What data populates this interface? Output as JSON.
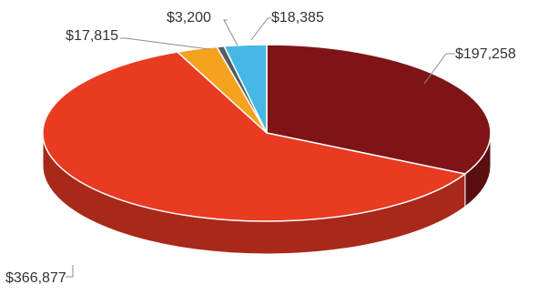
{
  "chart_data": {
    "type": "pie",
    "style": "3d",
    "title": "",
    "categories": [
      "",
      "",
      "",
      "",
      ""
    ],
    "values": [
      197258,
      366877,
      17815,
      3200,
      18385
    ],
    "labels": [
      "$197,258",
      "$366,877",
      "$17,815",
      "$3,200",
      "$18,385"
    ],
    "colors": [
      "#7e1416",
      "#e93a22",
      "#f5a31f",
      "#555b60",
      "#45b8e6"
    ],
    "side_colors": [
      "#5a0e10",
      "#a8291a",
      "#b07413",
      "#3a3f43",
      "#2f84a5"
    ],
    "legend": "none",
    "start_angle": "12 o'clock",
    "direction": "clockwise"
  }
}
